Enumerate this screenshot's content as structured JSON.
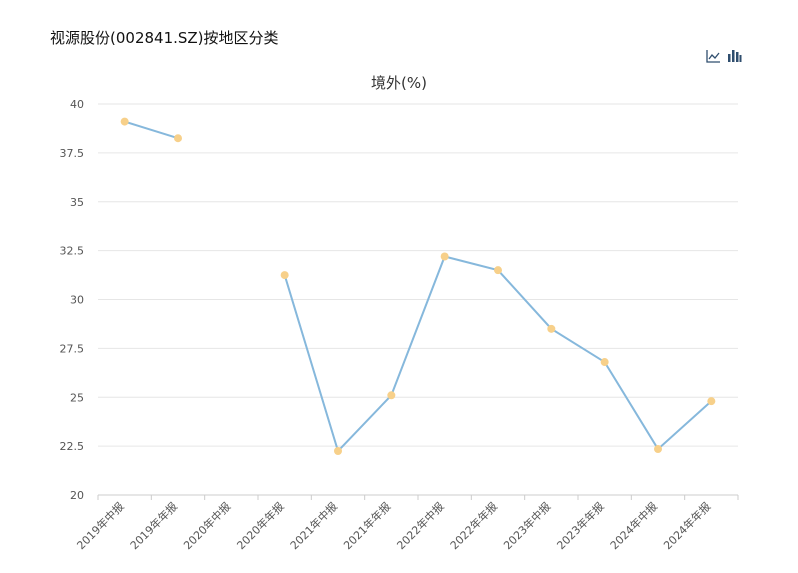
{
  "page": {
    "title": "视源股份(002841.SZ)按地区分类"
  },
  "toolbar": {
    "icons": [
      "line-chart-icon",
      "bar-chart-icon"
    ]
  },
  "colors": {
    "line": "#86b8dc",
    "point": "#f7d08a",
    "grid": "#e6e6e6",
    "axis": "#cccccc"
  },
  "chart_data": {
    "type": "line",
    "title": "境外(%)",
    "xlabel": "",
    "ylabel": "",
    "ylim": [
      20,
      40
    ],
    "yticks": [
      "20",
      "22.5",
      "25",
      "27.5",
      "30",
      "32.5",
      "35",
      "37.5",
      "40"
    ],
    "grid": true,
    "categories": [
      "2019年中报",
      "2019年年报",
      "2020年中报",
      "2020年年报",
      "2021年中报",
      "2021年年报",
      "2022年中报",
      "2022年年报",
      "2023年中报",
      "2023年年报",
      "2024年中报",
      "2024年年报"
    ],
    "series": [
      {
        "values": [
          39.1,
          38.25,
          null,
          31.25,
          22.25,
          25.1,
          32.2,
          31.5,
          28.5,
          26.8,
          22.35,
          24.8
        ]
      }
    ]
  }
}
